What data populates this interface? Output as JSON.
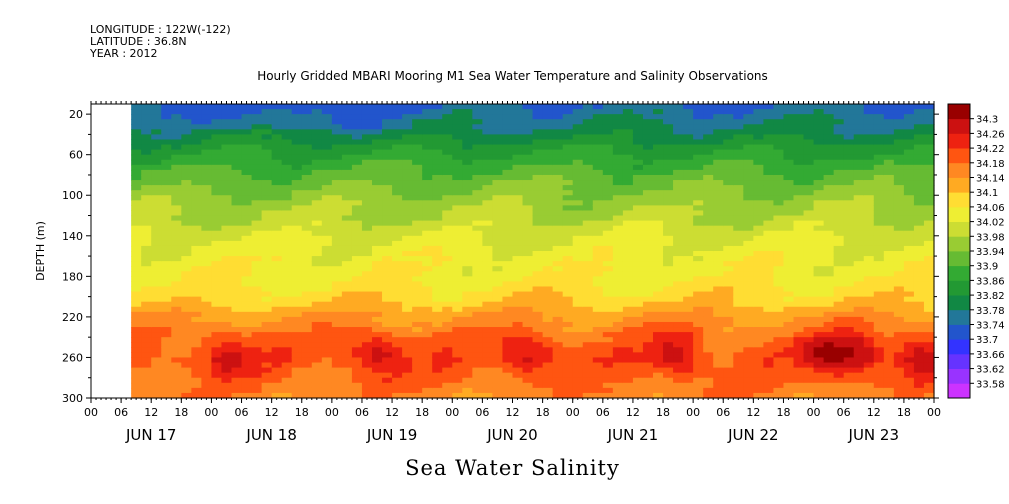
{
  "header": {
    "longitude": "LONGITUDE : 122W(-122)",
    "latitude": "LATITUDE : 36.8N",
    "year": "YEAR : 2012"
  },
  "chart_data": {
    "type": "heatmap",
    "title": "Hourly Gridded MBARI Mooring M1 Sea Water Temperature and Salinity Observations",
    "xlabel": "Sea Water Salinity",
    "ylabel": "DEPTH (m)",
    "y_axis": {
      "ticks": [
        20,
        60,
        100,
        140,
        180,
        220,
        260,
        300
      ],
      "range": [
        300,
        10
      ],
      "inverted": true
    },
    "x_axis": {
      "hour_ticks": [
        "00",
        "06",
        "12",
        "18",
        "00",
        "06",
        "12",
        "18",
        "00",
        "06",
        "12",
        "18",
        "00",
        "06",
        "12",
        "18",
        "00",
        "06",
        "12",
        "18",
        "00",
        "06",
        "12",
        "18",
        "00",
        "06",
        "12",
        "18",
        "00"
      ],
      "day_labels": [
        "JUN 17",
        "JUN 18",
        "JUN 19",
        "JUN 20",
        "JUN 21",
        "JUN 22",
        "JUN 23"
      ],
      "range_hours": [
        0,
        168
      ],
      "data_start_hour": 8
    },
    "colorbar": {
      "levels": [
        33.58,
        33.62,
        33.66,
        33.7,
        33.74,
        33.78,
        33.82,
        33.86,
        33.9,
        33.94,
        33.98,
        34.02,
        34.06,
        34.1,
        34.14,
        34.18,
        34.22,
        34.26,
        34.3
      ],
      "colors": [
        "#cc33ff",
        "#9933ff",
        "#6633ff",
        "#3333ff",
        "#2255cc",
        "#227799",
        "#118844",
        "#229933",
        "#33aa33",
        "#66bb33",
        "#99cc33",
        "#ccdd33",
        "#eeee33",
        "#ffdd33",
        "#ffaa22",
        "#ff8822",
        "#ff5511",
        "#ee2211",
        "#cc1111",
        "#990000"
      ]
    },
    "depth_profile": [
      {
        "depth": 10,
        "value": 33.74
      },
      {
        "depth": 20,
        "value": 33.76
      },
      {
        "depth": 40,
        "value": 33.8
      },
      {
        "depth": 60,
        "value": 33.86
      },
      {
        "depth": 80,
        "value": 33.91
      },
      {
        "depth": 100,
        "value": 33.95
      },
      {
        "depth": 120,
        "value": 33.98
      },
      {
        "depth": 140,
        "value": 34.02
      },
      {
        "depth": 160,
        "value": 34.04
      },
      {
        "depth": 180,
        "value": 34.05
      },
      {
        "depth": 200,
        "value": 34.08
      },
      {
        "depth": 220,
        "value": 34.14
      },
      {
        "depth": 240,
        "value": 34.18
      },
      {
        "depth": 260,
        "value": 34.2
      },
      {
        "depth": 280,
        "value": 34.18
      },
      {
        "depth": 300,
        "value": 34.16
      }
    ],
    "deep_maxima_hours": [
      26,
      56,
      86,
      116,
      146,
      152,
      164
    ],
    "grid": false,
    "legend": "colorbar-right"
  }
}
